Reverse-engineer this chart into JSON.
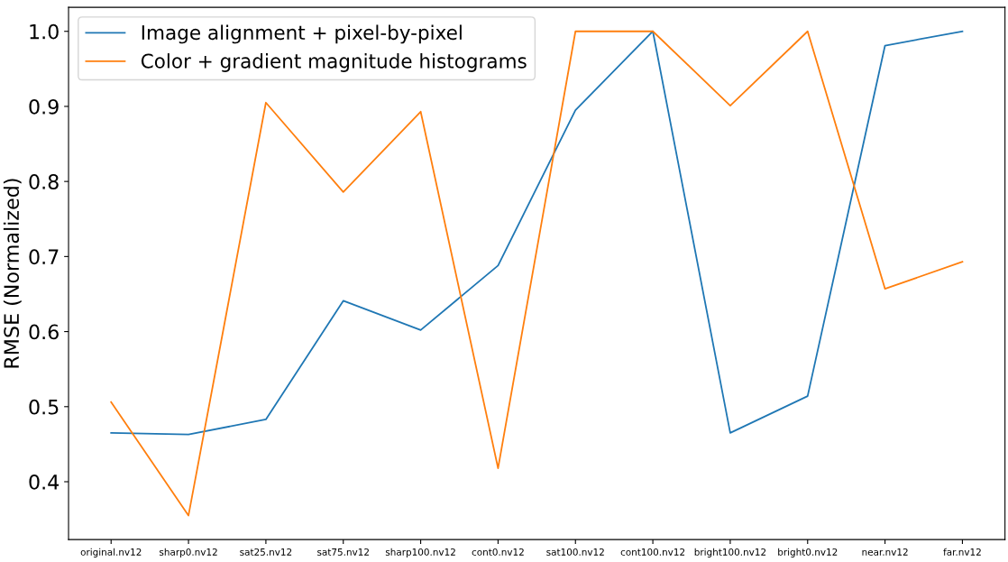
{
  "chart_data": {
    "type": "line",
    "ylabel": "RMSE (Normalized)",
    "categories": [
      "original.nv12",
      "sharp0.nv12",
      "sat25.nv12",
      "sat75.nv12",
      "sharp100.nv12",
      "cont0.nv12",
      "sat100.nv12",
      "cont100.nv12",
      "bright100.nv12",
      "bright0.nv12",
      "near.nv12",
      "far.nv12"
    ],
    "series": [
      {
        "name": "Image alignment + pixel-by-pixel",
        "color": "#1f77b4",
        "values": [
          0.465,
          0.463,
          0.483,
          0.641,
          0.602,
          0.688,
          0.895,
          1.0,
          0.465,
          0.514,
          0.981,
          1.0
        ]
      },
      {
        "name": "Color + gradient magnitude histograms",
        "color": "#ff7f0e",
        "values": [
          0.506,
          0.355,
          0.905,
          0.786,
          0.893,
          0.418,
          1.0,
          1.0,
          0.901,
          1.0,
          0.657,
          0.693
        ]
      }
    ],
    "ylim": [
      0.323,
      1.032
    ],
    "yticks": [
      0.4,
      0.5,
      0.6,
      0.7,
      0.8,
      0.9,
      {
        "value": 1.0,
        "label": "1.0"
      }
    ],
    "grid": false,
    "legend": "top left",
    "marker": "none",
    "line_style": "solid"
  }
}
